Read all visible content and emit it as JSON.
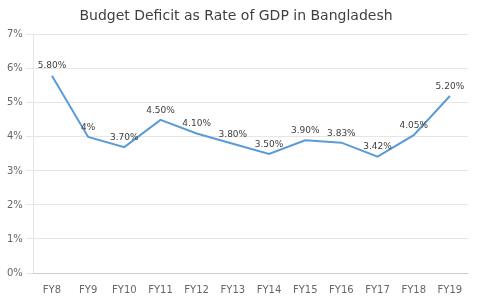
{
  "chart_data": {
    "type": "line",
    "title": "Budget Deficit as Rate of GDP in Bangladesh",
    "categories": [
      "FY8",
      "FY9",
      "FY10",
      "FY11",
      "FY12",
      "FY13",
      "FY14",
      "FY15",
      "FY16",
      "FY17",
      "FY18",
      "FY19"
    ],
    "values": [
      5.8,
      4.0,
      3.7,
      4.5,
      4.1,
      3.8,
      3.5,
      3.9,
      3.83,
      3.42,
      4.05,
      5.2
    ],
    "value_labels": [
      "5.80%",
      "4%",
      "3.70%",
      "4.50%",
      "4.10%",
      "3.80%",
      "3.50%",
      "3.90%",
      "3.83%",
      "3.42%",
      "4.05%",
      "5.20%"
    ],
    "data_labels": true,
    "color": "#5B9BD5",
    "ylim": [
      0,
      7
    ],
    "yticks": [
      {
        "value": 0,
        "label": "0%"
      },
      {
        "value": 1,
        "label": "1%"
      },
      {
        "value": 2,
        "label": "2%"
      },
      {
        "value": 3,
        "label": "3%"
      },
      {
        "value": 4,
        "label": "4%"
      },
      {
        "value": 5,
        "label": "5%"
      },
      {
        "value": 6,
        "label": "6%"
      },
      {
        "value": 7,
        "label": "7%"
      }
    ],
    "grid": true
  }
}
